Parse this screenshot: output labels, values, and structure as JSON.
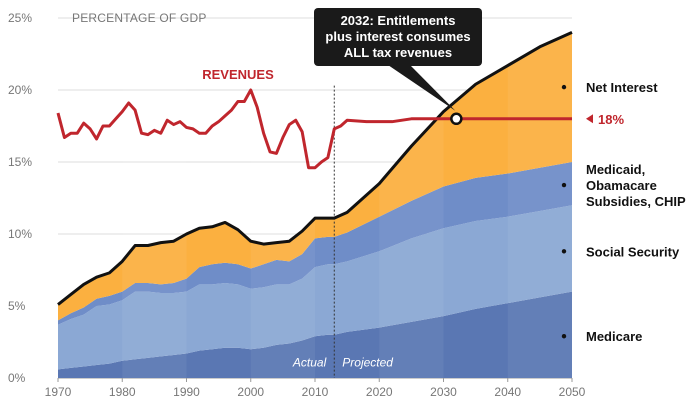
{
  "chart_data": {
    "type": "area",
    "subtitle": "PERCENTAGE OF GDP",
    "x_ticks": [
      "1970",
      "1980",
      "1990",
      "2000",
      "2010",
      "2020",
      "2030",
      "2040",
      "2050"
    ],
    "y_ticks": [
      "0%",
      "5%",
      "10%",
      "15%",
      "20%",
      "25%"
    ],
    "xlim": [
      1970,
      2050
    ],
    "ylim": [
      0,
      25
    ],
    "actual_label": "Actual",
    "projected_label": "Projected",
    "divider_year": 2013,
    "years": [
      1970,
      1972,
      1974,
      1976,
      1978,
      1980,
      1982,
      1984,
      1986,
      1988,
      1990,
      1992,
      1994,
      1996,
      1998,
      2000,
      2002,
      2004,
      2006,
      2008,
      2010,
      2012,
      2013,
      2015,
      2020,
      2025,
      2030,
      2035,
      2040,
      2045,
      2050
    ],
    "stacked_series": [
      {
        "name": "Medicare",
        "color": "#5a77b3",
        "values": [
          0.6,
          0.7,
          0.8,
          0.9,
          1.0,
          1.2,
          1.3,
          1.4,
          1.5,
          1.6,
          1.7,
          1.9,
          2.0,
          2.1,
          2.1,
          2.0,
          2.1,
          2.3,
          2.4,
          2.6,
          2.9,
          3.0,
          3.0,
          3.2,
          3.5,
          3.9,
          4.3,
          4.8,
          5.2,
          5.6,
          6.0
        ]
      },
      {
        "name": "Social Security",
        "color": "#8ba8d4",
        "values": [
          3.1,
          3.4,
          3.6,
          4.1,
          4.1,
          4.2,
          4.7,
          4.6,
          4.4,
          4.3,
          4.3,
          4.6,
          4.5,
          4.5,
          4.4,
          4.2,
          4.2,
          4.2,
          4.1,
          4.3,
          4.8,
          4.9,
          4.9,
          4.9,
          5.3,
          5.8,
          6.1,
          6.1,
          6.0,
          6.0,
          6.0
        ]
      },
      {
        "name": "Medicaid, Obamacare Subsidies, CHIP",
        "color": "#6f8dc8",
        "values": [
          0.3,
          0.4,
          0.5,
          0.5,
          0.6,
          0.6,
          0.6,
          0.6,
          0.6,
          0.7,
          0.9,
          1.2,
          1.4,
          1.4,
          1.4,
          1.4,
          1.6,
          1.7,
          1.6,
          1.7,
          2.0,
          1.9,
          1.9,
          2.0,
          2.4,
          2.6,
          2.9,
          3.0,
          3.0,
          3.0,
          3.0
        ]
      },
      {
        "name": "Net Interest",
        "color": "#fbb040",
        "values": [
          1.1,
          1.3,
          1.6,
          1.5,
          1.6,
          2.1,
          2.6,
          2.6,
          2.9,
          2.9,
          3.1,
          2.7,
          2.6,
          2.8,
          2.4,
          1.9,
          1.4,
          1.2,
          1.4,
          1.6,
          1.4,
          1.3,
          1.3,
          1.4,
          2.3,
          3.8,
          5.2,
          6.5,
          7.5,
          8.4,
          9.0
        ]
      }
    ],
    "revenues": {
      "name": "REVENUES",
      "color": "#c0262d",
      "points": [
        [
          1970,
          18.4
        ],
        [
          1971,
          16.7
        ],
        [
          1972,
          17.0
        ],
        [
          1973,
          17.0
        ],
        [
          1974,
          17.7
        ],
        [
          1975,
          17.3
        ],
        [
          1976,
          16.6
        ],
        [
          1977,
          17.5
        ],
        [
          1978,
          17.5
        ],
        [
          1979,
          18.0
        ],
        [
          1980,
          18.5
        ],
        [
          1981,
          19.1
        ],
        [
          1982,
          18.6
        ],
        [
          1983,
          17.0
        ],
        [
          1984,
          16.9
        ],
        [
          1985,
          17.2
        ],
        [
          1986,
          17.0
        ],
        [
          1987,
          17.9
        ],
        [
          1988,
          17.6
        ],
        [
          1989,
          17.8
        ],
        [
          1990,
          17.4
        ],
        [
          1991,
          17.3
        ],
        [
          1992,
          17.0
        ],
        [
          1993,
          17.0
        ],
        [
          1994,
          17.5
        ],
        [
          1995,
          17.8
        ],
        [
          1996,
          18.2
        ],
        [
          1997,
          18.6
        ],
        [
          1998,
          19.2
        ],
        [
          1999,
          19.2
        ],
        [
          2000,
          20.0
        ],
        [
          2001,
          18.8
        ],
        [
          2002,
          17.0
        ],
        [
          2003,
          15.7
        ],
        [
          2004,
          15.6
        ],
        [
          2005,
          16.7
        ],
        [
          2006,
          17.6
        ],
        [
          2007,
          17.9
        ],
        [
          2008,
          17.1
        ],
        [
          2009,
          14.6
        ],
        [
          2010,
          14.6
        ],
        [
          2011,
          15.0
        ],
        [
          2012,
          15.3
        ],
        [
          2013,
          17.3
        ],
        [
          2014,
          17.5
        ],
        [
          2015,
          17.9
        ],
        [
          2018,
          17.8
        ],
        [
          2022,
          17.8
        ],
        [
          2025,
          18.0
        ],
        [
          2030,
          18.0
        ],
        [
          2050,
          18.0
        ]
      ]
    },
    "marker_label": "18%",
    "callout": {
      "year": 2032,
      "value": 18.0,
      "lines": [
        "2032: Entitlements",
        "plus interest consumes",
        "ALL tax revenues"
      ]
    },
    "right_labels": [
      {
        "text_lines": [
          "Net Interest"
        ],
        "value": 20.2
      },
      {
        "text_lines": [
          "Medicaid,",
          "Obamacare",
          "Subsidies, CHIP"
        ],
        "value": 13.4
      },
      {
        "text_lines": [
          "Social Security"
        ],
        "value": 8.8
      },
      {
        "text_lines": [
          "Medicare"
        ],
        "value": 2.9
      }
    ],
    "colors": {
      "total_line": "#111111",
      "grid": "#dddddd",
      "callout_bg": "#1a1a1a"
    }
  }
}
